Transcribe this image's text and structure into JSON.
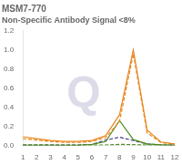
{
  "chart_data": {
    "type": "line",
    "title": "MSM7-770",
    "subtitle": "Non-Specific Antibody Signal <8%",
    "annotations": [
      {
        "text": "Q",
        "color": "#DCDCE8"
      }
    ],
    "x": [
      1,
      2,
      3,
      4,
      5,
      6,
      7,
      8,
      9,
      10,
      11,
      12
    ],
    "series": [
      {
        "color": "#E8851A",
        "line_style": "solid",
        "values": [
          0.09,
          0.07,
          0.05,
          0.04,
          0.04,
          0.05,
          0.1,
          0.32,
          1.0,
          0.16,
          0.035,
          0.015
        ]
      },
      {
        "color": "#E8851A",
        "line_style": "dashed",
        "values": [
          0.07,
          0.055,
          0.04,
          0.03,
          0.03,
          0.04,
          0.08,
          0.25,
          0.96,
          0.13,
          0.03,
          0.012
        ]
      },
      {
        "color": "#4A8C1C",
        "line_style": "solid",
        "values": [
          0.0,
          0.0,
          0.0,
          0.0,
          0.0,
          0.01,
          0.04,
          0.26,
          0.06,
          0.015,
          0.005,
          0.003
        ]
      },
      {
        "color": "#4A8C1C",
        "line_style": "dashed",
        "values": [
          0.003,
          0.002,
          0.002,
          0.001,
          0.001,
          0.002,
          0.004,
          0.01,
          0.007,
          0.003,
          0.002,
          0.001
        ]
      },
      {
        "color": "#4B3A8C",
        "line_style": "dashed",
        "values": [
          0.003,
          0.002,
          0.002,
          0.002,
          0.003,
          0.008,
          0.055,
          0.085,
          0.05,
          0.015,
          0.004,
          0.002
        ]
      }
    ],
    "xlim": [
      1,
      12
    ],
    "xticks": [
      1,
      2,
      3,
      4,
      5,
      6,
      7,
      8,
      9,
      10,
      11,
      12
    ],
    "ylim": [
      0,
      1.2
    ],
    "yticks": [
      {
        "value": 0,
        "label": "0.0"
      },
      0.2,
      0.4,
      0.6,
      0.8,
      {
        "value": 1.0,
        "label": "1.0"
      },
      1.2
    ],
    "grid": false
  }
}
